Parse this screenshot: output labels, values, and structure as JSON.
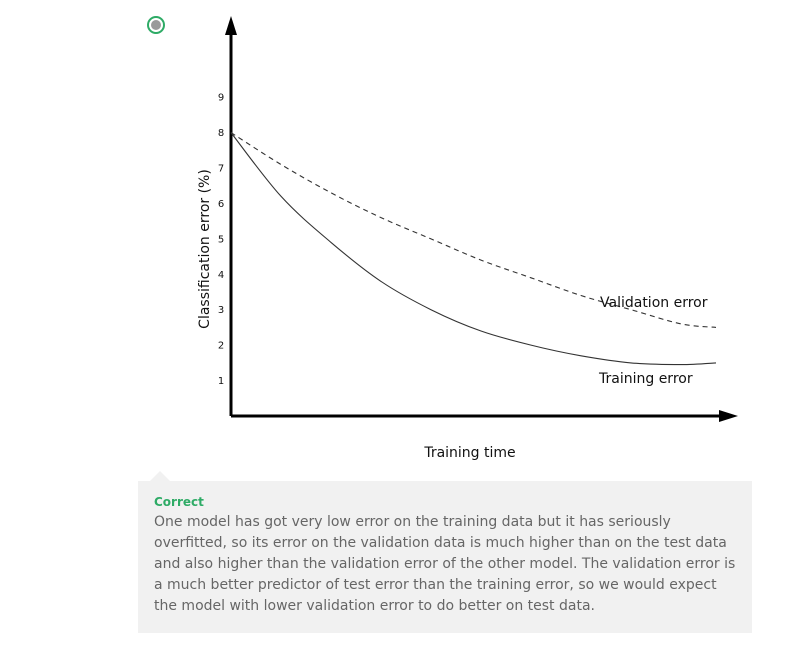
{
  "answer_option": {
    "selected": true,
    "accent_color": "#2eab66",
    "dot_color": "#9a9a9a"
  },
  "chart_data": {
    "type": "line",
    "ylabel": "Classification error (%)",
    "xlabel": "Training time",
    "yticks": [
      "1",
      "2",
      "3",
      "4",
      "5",
      "6",
      "7",
      "8",
      "9"
    ],
    "xlim": [
      0,
      100
    ],
    "ylim": [
      0,
      10.5
    ],
    "grid": false,
    "series": [
      {
        "name": "Validation error",
        "style": "dashed",
        "x": [
          0,
          10,
          20,
          30,
          40,
          50,
          60,
          70,
          80,
          90,
          97
        ],
        "y": [
          8.0,
          7.1,
          6.3,
          5.6,
          5.0,
          4.4,
          3.9,
          3.4,
          3.0,
          2.6,
          2.5
        ]
      },
      {
        "name": "Training error",
        "style": "solid",
        "x": [
          0,
          10,
          20,
          30,
          40,
          50,
          60,
          70,
          80,
          90,
          97
        ],
        "y": [
          8.0,
          6.2,
          4.9,
          3.8,
          3.0,
          2.4,
          2.0,
          1.7,
          1.5,
          1.45,
          1.5
        ]
      }
    ]
  },
  "feedback": {
    "status": "Correct",
    "status_color": "#2eab66",
    "text": "One model has got very low error on the training data but it has seriously overfitted, so its error on the validation data is much higher than on the test data and also higher than the validation error of the other model. The validation error is a much better predictor of test error than the training error, so we would expect the model with lower validation error to do better on test data."
  }
}
